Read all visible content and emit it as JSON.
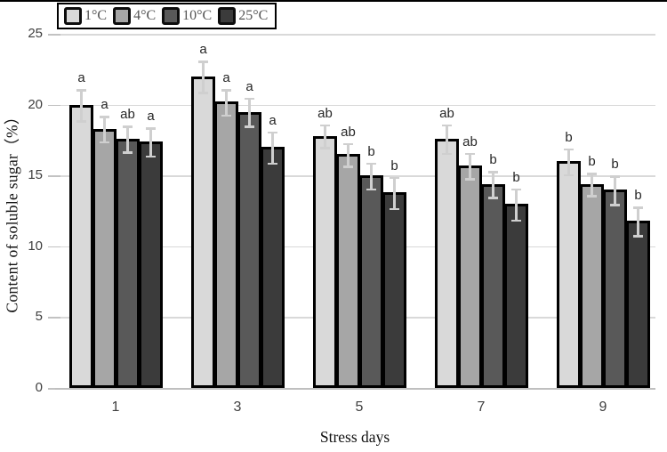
{
  "legend": {
    "items": [
      {
        "label": "1°C",
        "color": "#d9d9d9"
      },
      {
        "label": "4°C",
        "color": "#a6a6a6"
      },
      {
        "label": "10°C",
        "color": "#595959"
      },
      {
        "label": "25°C",
        "color": "#3b3b3b"
      }
    ]
  },
  "chart_data": {
    "type": "bar",
    "title": "",
    "xlabel": "Stress days",
    "ylabel": "Content of soluble sugar（%）",
    "categories": [
      "1",
      "3",
      "5",
      "7",
      "9"
    ],
    "series": [
      {
        "name": "1°C",
        "color": "#d9d9d9",
        "values": [
          20.0,
          22.0,
          17.8,
          17.6,
          16.0
        ],
        "errors": [
          1.1,
          1.1,
          0.8,
          1.0,
          0.9
        ],
        "sig_labels": [
          "a",
          "a",
          "ab",
          "ab",
          "b"
        ]
      },
      {
        "name": "4°C",
        "color": "#a6a6a6",
        "values": [
          18.3,
          20.2,
          16.5,
          15.7,
          14.4
        ],
        "errors": [
          0.9,
          0.9,
          0.8,
          0.9,
          0.8
        ],
        "sig_labels": [
          "a",
          "a",
          "ab",
          "ab",
          "b"
        ]
      },
      {
        "name": "10°C",
        "color": "#595959",
        "values": [
          17.6,
          19.5,
          15.0,
          14.4,
          14.0
        ],
        "errors": [
          0.9,
          1.0,
          0.9,
          0.9,
          1.0
        ],
        "sig_labels": [
          "ab",
          "a",
          "b",
          "b",
          "b"
        ]
      },
      {
        "name": "25°C",
        "color": "#3b3b3b",
        "values": [
          17.4,
          17.0,
          13.8,
          13.0,
          11.8
        ],
        "errors": [
          1.0,
          1.1,
          1.1,
          1.1,
          1.0
        ],
        "sig_labels": [
          "a",
          "a",
          "b",
          "b",
          "b"
        ]
      }
    ],
    "ylim": [
      0,
      25
    ],
    "yticks": [
      0,
      5,
      10,
      15,
      20,
      25
    ],
    "grid": true,
    "legend_position": "top-left"
  }
}
